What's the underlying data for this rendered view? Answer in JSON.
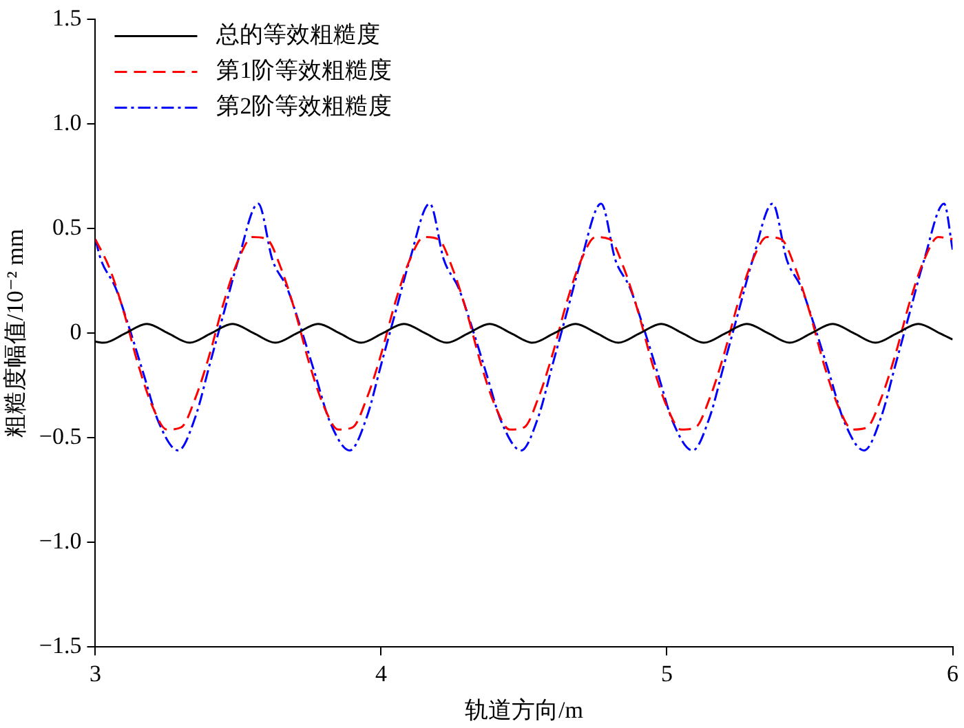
{
  "chart_data": {
    "type": "line",
    "xlabel": "轨道方向/m",
    "ylabel": "粗糙度幅值/10⁻² mm",
    "xlim": [
      3,
      6
    ],
    "xticks": [
      3,
      4,
      5,
      6
    ],
    "ylim": [
      -1.5,
      1.5
    ],
    "yticks": [
      {
        "value": -1.5,
        "label": "−1.5"
      },
      {
        "value": -1,
        "label": "−1.0"
      },
      {
        "value": -0.5,
        "label": "−0.5"
      },
      0,
      0.5,
      {
        "value": 1,
        "label": "1.0"
      },
      {
        "value": 1.5,
        "label": "1.5"
      }
    ],
    "grid": false,
    "legend": "top left",
    "marker": "none",
    "series": [
      {
        "name": "总的等效粗糙度",
        "color": "#000000",
        "line_style": "solid",
        "x": [
          3.0,
          3.03,
          3.105,
          3.18,
          3.255,
          3.33,
          3.405,
          3.48,
          3.555,
          3.63,
          3.705,
          3.78,
          3.855,
          3.93,
          4.005,
          4.08,
          4.155,
          4.23,
          4.305,
          4.38,
          4.455,
          4.53,
          4.605,
          4.68,
          4.755,
          4.83,
          4.905,
          4.98,
          5.055,
          5.13,
          5.205,
          5.28,
          5.355,
          5.43,
          5.505,
          5.58,
          5.655,
          5.73,
          5.805,
          5.88,
          5.955,
          6.0
        ],
        "values": [
          -0.04,
          -0.045,
          0,
          0.045,
          0,
          -0.045,
          0,
          0.045,
          0,
          -0.045,
          0,
          0.045,
          0,
          -0.045,
          0,
          0.045,
          0,
          -0.045,
          0,
          0.045,
          0,
          -0.045,
          0,
          0.045,
          0,
          -0.045,
          0,
          0.045,
          0,
          -0.045,
          0,
          0.045,
          0,
          -0.045,
          0,
          0.045,
          0,
          -0.045,
          0,
          0.045,
          0,
          -0.03
        ]
      },
      {
        "name": "第1阶等效粗糙度",
        "color": "#ff0000",
        "line_style": "dashed",
        "x": [
          3.0,
          3.05,
          3.1,
          3.15,
          3.2,
          3.25,
          3.3,
          3.35,
          3.4,
          3.45,
          3.5,
          3.55,
          3.6,
          3.65,
          3.7,
          3.75,
          3.8,
          3.85,
          3.9,
          3.95,
          4.0,
          4.05,
          4.1,
          4.15,
          4.2,
          4.25,
          4.3,
          4.35,
          4.4,
          4.45,
          4.5,
          4.55,
          4.6,
          4.65,
          4.7,
          4.75,
          4.8,
          4.85,
          4.9,
          4.95,
          5.0,
          5.05,
          5.1,
          5.15,
          5.2,
          5.25,
          5.3,
          5.35,
          5.4,
          5.45,
          5.5,
          5.55,
          5.6,
          5.65,
          5.7,
          5.75,
          5.8,
          5.85,
          5.9,
          5.95,
          6.0
        ],
        "values": [
          0.45,
          0.31,
          0.1,
          -0.15,
          -0.35,
          -0.46,
          -0.45,
          -0.31,
          -0.1,
          0.15,
          0.35,
          0.46,
          0.45,
          0.31,
          0.1,
          -0.15,
          -0.35,
          -0.46,
          -0.45,
          -0.31,
          -0.1,
          0.15,
          0.35,
          0.46,
          0.45,
          0.31,
          0.1,
          -0.15,
          -0.35,
          -0.46,
          -0.45,
          -0.31,
          -0.1,
          0.15,
          0.35,
          0.46,
          0.45,
          0.31,
          0.1,
          -0.15,
          -0.35,
          -0.46,
          -0.45,
          -0.31,
          -0.1,
          0.15,
          0.35,
          0.46,
          0.45,
          0.31,
          0.1,
          -0.15,
          -0.35,
          -0.46,
          -0.45,
          -0.31,
          -0.1,
          0.15,
          0.35,
          0.46,
          0.45
        ]
      },
      {
        "name": "第2阶等效粗糙度",
        "color": "#0000ff",
        "line_style": "dashdot",
        "x": [
          3.0,
          3.02,
          3.07,
          3.12,
          3.17,
          3.22,
          3.29,
          3.35,
          3.4,
          3.45,
          3.5,
          3.57,
          3.62,
          3.67,
          3.72,
          3.77,
          3.82,
          3.89,
          3.95,
          4.0,
          4.05,
          4.1,
          4.17,
          4.22,
          4.27,
          4.32,
          4.37,
          4.42,
          4.49,
          4.55,
          4.6,
          4.65,
          4.7,
          4.77,
          4.82,
          4.87,
          4.92,
          4.97,
          5.02,
          5.09,
          5.15,
          5.2,
          5.25,
          5.3,
          5.37,
          5.42,
          5.47,
          5.52,
          5.57,
          5.62,
          5.69,
          5.75,
          5.8,
          5.85,
          5.9,
          5.97,
          6.0
        ],
        "values": [
          0.45,
          0.35,
          0.22,
          0.02,
          -0.2,
          -0.42,
          -0.56,
          -0.4,
          -0.15,
          0.1,
          0.35,
          0.62,
          0.35,
          0.22,
          0.02,
          -0.2,
          -0.42,
          -0.56,
          -0.4,
          -0.15,
          0.1,
          0.35,
          0.62,
          0.35,
          0.22,
          0.02,
          -0.2,
          -0.42,
          -0.56,
          -0.4,
          -0.15,
          0.1,
          0.35,
          0.62,
          0.35,
          0.22,
          0.02,
          -0.2,
          -0.42,
          -0.56,
          -0.4,
          -0.15,
          0.1,
          0.35,
          0.62,
          0.35,
          0.22,
          0.02,
          -0.2,
          -0.42,
          -0.56,
          -0.4,
          -0.15,
          0.1,
          0.35,
          0.62,
          0.4
        ]
      }
    ]
  }
}
